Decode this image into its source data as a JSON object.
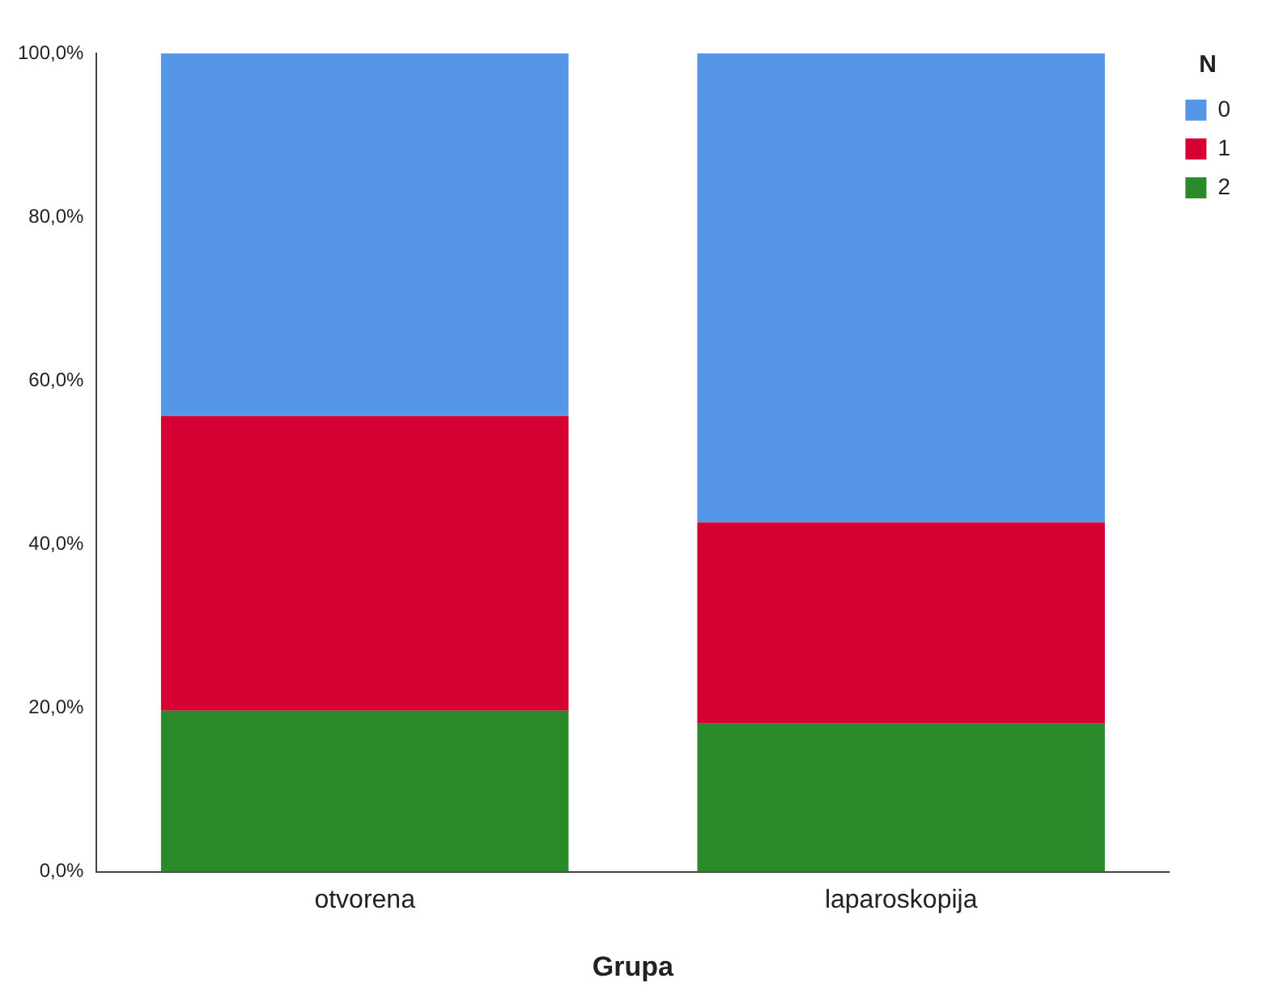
{
  "chart_data": {
    "type": "bar",
    "stacked": true,
    "xlabel": "Grupa",
    "legend_title": "N",
    "legend": "top right",
    "grid": false,
    "categories": [
      "otvorena",
      "laparoskopija"
    ],
    "series": [
      {
        "name": "2",
        "color": "#2a8a2a",
        "values": [
          19.7,
          18.1
        ]
      },
      {
        "name": "1",
        "color": "#d60032",
        "values": [
          36.0,
          24.6
        ]
      },
      {
        "name": "0",
        "color": "#5597e6",
        "values": [
          44.3,
          57.3
        ]
      }
    ],
    "ylim": [
      0,
      100
    ],
    "yticks": [
      {
        "value": 0,
        "label": "0,0%"
      },
      {
        "value": 20,
        "label": "20,0%"
      },
      {
        "value": 40,
        "label": "40,0%"
      },
      {
        "value": 60,
        "label": "60,0%"
      },
      {
        "value": 80,
        "label": "80,0%"
      },
      {
        "value": 100,
        "label": "100,0%"
      }
    ]
  }
}
